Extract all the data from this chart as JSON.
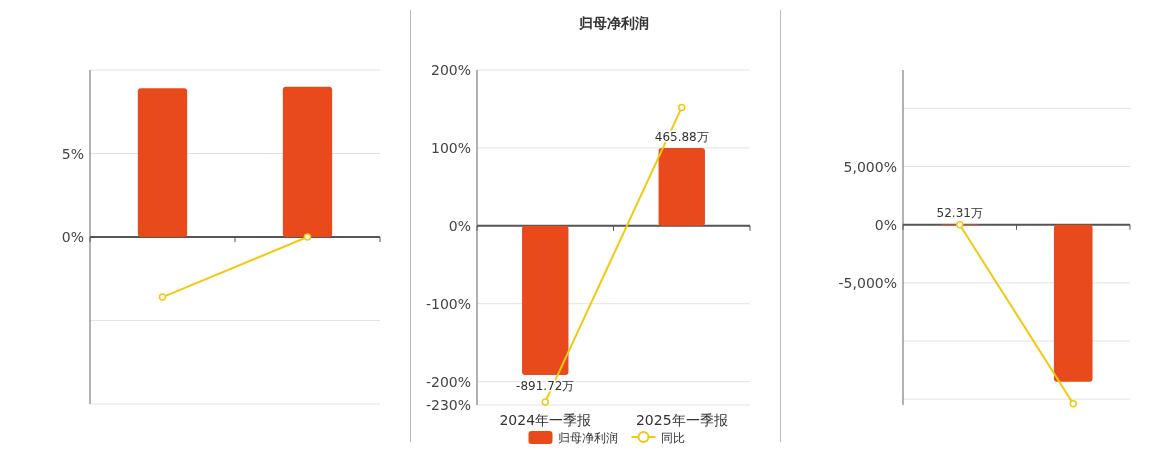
{
  "chart_data": [
    {
      "type": "bar",
      "categories": [
        null,
        null
      ],
      "series": [
        {
          "color": "#e84a1c",
          "values": [
            8.9,
            9.0
          ]
        },
        {
          "type": "line",
          "color": "#f2c811",
          "values": [
            -3.6,
            0
          ]
        }
      ],
      "ylim": [
        -10,
        10
      ],
      "yticks": [
        {
          "value": -10,
          "label": null
        },
        {
          "value": -5,
          "label": null
        },
        {
          "value": 0,
          "label": "0%"
        },
        {
          "value": 5,
          "label": "5%"
        },
        {
          "value": 10,
          "label": null
        }
      ],
      "grid": "y",
      "marker": "circle",
      "tick_labels": "y"
    },
    {
      "type": "bar",
      "title": "归母净利润",
      "categories": [
        "2024年一季报",
        "2025年一季报"
      ],
      "series": [
        {
          "name": "归母净利润",
          "color": "#e84a1c",
          "axis": "y2",
          "values": [
            -891.72,
            465.88
          ],
          "value_labels": [
            "-891.72万",
            "465.88万"
          ]
        },
        {
          "type": "line",
          "name": "同比",
          "color": "#f2c811",
          "values": [
            -226,
            152
          ]
        }
      ],
      "ylim": [
        -230,
        200
      ],
      "yticks": [
        {
          "value": -230,
          "label": "-230%"
        },
        {
          "value": -200,
          "label": "-200%"
        },
        {
          "value": -100,
          "label": "-100%"
        },
        {
          "value": 0,
          "label": "0%"
        },
        {
          "value": 100,
          "label": "100%"
        },
        {
          "value": 200,
          "label": "200%"
        }
      ],
      "y2lim": [
        -1071.5,
        931.8
      ],
      "grid": "y",
      "legend": "bottom",
      "marker": "circle"
    },
    {
      "type": "bar",
      "categories": [
        null,
        null
      ],
      "series": [
        {
          "color": "#e84a1c",
          "values": [
            52.31,
            -13500
          ],
          "value_labels": [
            "52.31万",
            null
          ]
        },
        {
          "type": "line",
          "color": "#f2c811",
          "values": [
            0,
            -15400
          ]
        }
      ],
      "ylim": [
        -15500,
        13300
      ],
      "yticks": [
        {
          "value": -15000,
          "label": null
        },
        {
          "value": -10000,
          "label": null
        },
        {
          "value": -5000,
          "label": "-5,000%"
        },
        {
          "value": 0,
          "label": "0%"
        },
        {
          "value": 5000,
          "label": "5,000%"
        },
        {
          "value": 10000,
          "label": null
        }
      ],
      "grid": "y",
      "marker": "circle",
      "tick_labels": "y"
    }
  ]
}
